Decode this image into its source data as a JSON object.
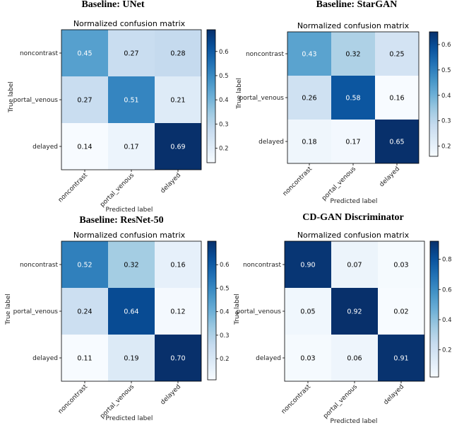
{
  "chart_data": [
    {
      "type": "heatmap",
      "panel_title": "Baseline: UNet",
      "title": "Normalized confusion matrix",
      "xlabel": "Predicted label",
      "ylabel": "True label",
      "x_categories": [
        "noncontrast",
        "portal_venous",
        "delayed"
      ],
      "y_categories": [
        "noncontrast",
        "portal_venous",
        "delayed"
      ],
      "values": [
        [
          0.45,
          0.27,
          0.28
        ],
        [
          0.27,
          0.51,
          0.21
        ],
        [
          0.14,
          0.17,
          0.69
        ]
      ],
      "value_labels": [
        [
          "0.45",
          "0.27",
          "0.28"
        ],
        [
          "0.27",
          "0.51",
          "0.21"
        ],
        [
          "0.14",
          "0.17",
          "0.69"
        ]
      ],
      "colorbar": {
        "min": 0.14,
        "max": 0.69,
        "ticks": [
          0.2,
          0.3,
          0.4,
          0.5,
          0.6
        ],
        "tick_labels": [
          "0.2",
          "0.3",
          "0.4",
          "0.5",
          "0.6"
        ]
      }
    },
    {
      "type": "heatmap",
      "panel_title": "Baseline: StarGAN",
      "title": "Normalized confusion matrix",
      "xlabel": "Predicted label",
      "ylabel": "True label",
      "x_categories": [
        "noncontrast",
        "portal_venous",
        "delayed"
      ],
      "y_categories": [
        "noncontrast",
        "portal_venous",
        "delayed"
      ],
      "values": [
        [
          0.43,
          0.32,
          0.25
        ],
        [
          0.26,
          0.58,
          0.16
        ],
        [
          0.18,
          0.17,
          0.65
        ]
      ],
      "value_labels": [
        [
          "0.43",
          "0.32",
          "0.25"
        ],
        [
          "0.26",
          "0.58",
          "0.16"
        ],
        [
          "0.18",
          "0.17",
          "0.65"
        ]
      ],
      "colorbar": {
        "min": 0.16,
        "max": 0.65,
        "ticks": [
          0.2,
          0.3,
          0.4,
          0.5,
          0.6
        ],
        "tick_labels": [
          "0.2",
          "0.3",
          "0.4",
          "0.5",
          "0.6"
        ]
      }
    },
    {
      "type": "heatmap",
      "panel_title": "Baseline: ResNet-50",
      "title": "Normalized confusion matrix",
      "xlabel": "Predicted label",
      "ylabel": "True label",
      "x_categories": [
        "noncontrast",
        "portal_venous",
        "delayed"
      ],
      "y_categories": [
        "noncontrast",
        "portal_venous",
        "delayed"
      ],
      "values": [
        [
          0.52,
          0.32,
          0.16
        ],
        [
          0.24,
          0.64,
          0.12
        ],
        [
          0.11,
          0.19,
          0.7
        ]
      ],
      "value_labels": [
        [
          "0.52",
          "0.32",
          "0.16"
        ],
        [
          "0.24",
          "0.64",
          "0.12"
        ],
        [
          "0.11",
          "0.19",
          "0.70"
        ]
      ],
      "colorbar": {
        "min": 0.11,
        "max": 0.7,
        "ticks": [
          0.2,
          0.3,
          0.4,
          0.5,
          0.6
        ],
        "tick_labels": [
          "0.2",
          "0.3",
          "0.4",
          "0.5",
          "0.6"
        ]
      }
    },
    {
      "type": "heatmap",
      "panel_title": "CD-GAN Discriminator",
      "title": "Normalized confusion matrix",
      "xlabel": "Predicted label",
      "ylabel": "True label",
      "x_categories": [
        "noncontrast",
        "portal_venous",
        "delayed"
      ],
      "y_categories": [
        "noncontrast",
        "portal_venous",
        "delayed"
      ],
      "values": [
        [
          0.9,
          0.07,
          0.03
        ],
        [
          0.05,
          0.92,
          0.02
        ],
        [
          0.03,
          0.06,
          0.91
        ]
      ],
      "value_labels": [
        [
          "0.90",
          "0.07",
          "0.03"
        ],
        [
          "0.05",
          "0.92",
          "0.02"
        ],
        [
          "0.03",
          "0.06",
          "0.91"
        ]
      ],
      "colorbar": {
        "min": 0.02,
        "max": 0.92,
        "ticks": [
          0.2,
          0.4,
          0.6,
          0.8
        ],
        "tick_labels": [
          "0.2",
          "0.4",
          "0.6",
          "0.8"
        ]
      }
    }
  ],
  "colormap": "Blues",
  "colors": {
    "low": "#f7fbff",
    "high": "#08306b",
    "text_dark": "#000000",
    "text_light": "#ffffff"
  }
}
